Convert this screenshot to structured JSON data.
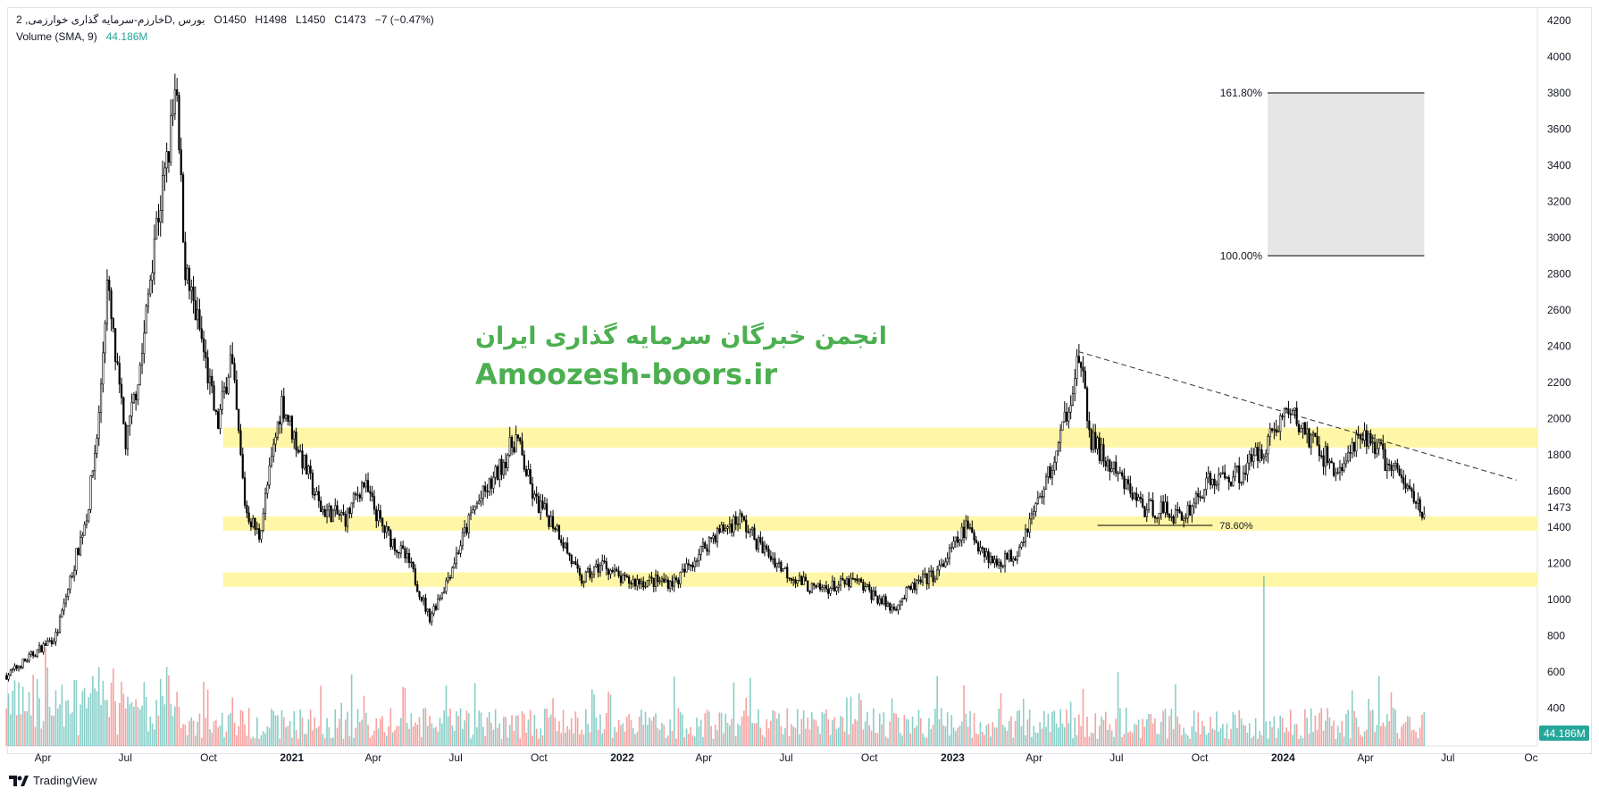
{
  "legend": {
    "symbol_line": "خارزم-سرمایه گذاری خوارزمی, 2D, بورس",
    "open": "O1450",
    "high": "H1498",
    "low": "L1450",
    "close": "C1473",
    "change": "−7 (−0.47%)",
    "volume_label": "Volume (SMA, 9)",
    "volume_value": "44.186M"
  },
  "watermark": {
    "line1": "انجمن خبرگان سرمایه گذاری ایران",
    "line2": "Amoozesh-boors.ir",
    "color": "#4caf50"
  },
  "branding": "TradingView",
  "colors": {
    "up_volume": "#26a69a",
    "down_volume": "#ef5350",
    "zone": "#fff59d",
    "fib_box": "#e6e6e6"
  },
  "chart_data": {
    "type": "candlestick",
    "price_axis": {
      "ticks": [
        400,
        600,
        800,
        1000,
        1200,
        1400,
        1600,
        1800,
        2000,
        2200,
        2400,
        2600,
        2800,
        3000,
        3200,
        3400,
        3600,
        3800,
        4000,
        4200
      ],
      "last_price": "1473",
      "volume_badge": "44.186M"
    },
    "time_axis": {
      "ticks": [
        {
          "label": "Apr",
          "date": "2020-04-01"
        },
        {
          "label": "Jul",
          "date": "2020-07-01"
        },
        {
          "label": "Oct",
          "date": "2020-10-01"
        },
        {
          "label": "2021",
          "date": "2021-01-01"
        },
        {
          "label": "Apr",
          "date": "2021-04-01"
        },
        {
          "label": "Jul",
          "date": "2021-07-01"
        },
        {
          "label": "Oct",
          "date": "2021-10-01"
        },
        {
          "label": "2022",
          "date": "2022-01-01"
        },
        {
          "label": "Apr",
          "date": "2022-04-01"
        },
        {
          "label": "Jul",
          "date": "2022-07-01"
        },
        {
          "label": "Oct",
          "date": "2022-10-01"
        },
        {
          "label": "2023",
          "date": "2023-01-01"
        },
        {
          "label": "Apr",
          "date": "2023-04-01"
        },
        {
          "label": "Jul",
          "date": "2023-07-01"
        },
        {
          "label": "Oct",
          "date": "2023-10-01"
        },
        {
          "label": "2024",
          "date": "2024-01-01"
        },
        {
          "label": "Apr",
          "date": "2024-04-01"
        },
        {
          "label": "Jul",
          "date": "2024-07-01"
        },
        {
          "label": "Oc",
          "date": "2024-10-01"
        }
      ]
    },
    "approx_price_path": [
      [
        "2020-02-20",
        580
      ],
      [
        "2020-04-15",
        800
      ],
      [
        "2020-05-20",
        1500
      ],
      [
        "2020-06-01",
        2000
      ],
      [
        "2020-06-10",
        2750
      ],
      [
        "2020-06-20",
        2300
      ],
      [
        "2020-07-01",
        1850
      ],
      [
        "2020-07-20",
        2400
      ],
      [
        "2020-08-01",
        3000
      ],
      [
        "2020-08-15",
        3400
      ],
      [
        "2020-08-25",
        3800
      ],
      [
        "2020-09-05",
        2800
      ],
      [
        "2020-09-20",
        2500
      ],
      [
        "2020-10-10",
        1950
      ],
      [
        "2020-10-25",
        2350
      ],
      [
        "2020-11-10",
        1500
      ],
      [
        "2020-11-25",
        1350
      ],
      [
        "2020-12-20",
        2100
      ],
      [
        "2021-01-10",
        1800
      ],
      [
        "2021-02-01",
        1500
      ],
      [
        "2021-03-01",
        1450
      ],
      [
        "2021-03-20",
        1650
      ],
      [
        "2021-04-10",
        1400
      ],
      [
        "2021-05-10",
        1200
      ],
      [
        "2021-06-01",
        900
      ],
      [
        "2021-06-20",
        1100
      ],
      [
        "2021-07-20",
        1500
      ],
      [
        "2021-08-10",
        1650
      ],
      [
        "2021-09-05",
        1900
      ],
      [
        "2021-09-25",
        1550
      ],
      [
        "2021-10-20",
        1400
      ],
      [
        "2021-11-15",
        1100
      ],
      [
        "2021-12-10",
        1200
      ],
      [
        "2022-01-01",
        1100
      ],
      [
        "2022-03-01",
        1100
      ],
      [
        "2022-04-10",
        1350
      ],
      [
        "2022-05-10",
        1450
      ],
      [
        "2022-06-01",
        1300
      ],
      [
        "2022-07-01",
        1150
      ],
      [
        "2022-08-01",
        1050
      ],
      [
        "2022-09-15",
        1100
      ],
      [
        "2022-10-25",
        950
      ],
      [
        "2022-11-20",
        1080
      ],
      [
        "2022-12-15",
        1150
      ],
      [
        "2023-01-15",
        1400
      ],
      [
        "2023-02-15",
        1200
      ],
      [
        "2023-03-10",
        1250
      ],
      [
        "2023-04-01",
        1500
      ],
      [
        "2023-04-25",
        1800
      ],
      [
        "2023-05-20",
        2350
      ],
      [
        "2023-06-01",
        1900
      ],
      [
        "2023-06-20",
        1750
      ],
      [
        "2023-08-01",
        1500
      ],
      [
        "2023-08-20",
        1500
      ],
      [
        "2023-09-10",
        1450
      ],
      [
        "2023-10-10",
        1650
      ],
      [
        "2023-11-15",
        1700
      ],
      [
        "2023-12-10",
        1850
      ],
      [
        "2024-01-05",
        2050
      ],
      [
        "2024-02-05",
        1850
      ],
      [
        "2024-03-01",
        1700
      ],
      [
        "2024-03-20",
        1850
      ],
      [
        "2024-04-05",
        1900
      ],
      [
        "2024-04-25",
        1750
      ],
      [
        "2024-05-20",
        1600
      ],
      [
        "2024-06-05",
        1473
      ]
    ],
    "zones": [
      {
        "from": 1840,
        "to": 1950
      },
      {
        "from": 1380,
        "to": 1460
      },
      {
        "from": 1070,
        "to": 1150
      }
    ],
    "fib_box": {
      "top_label": "161.80%",
      "top_price": 3800,
      "bottom_label": "100.00%",
      "bottom_price": 2900,
      "start": "2023-12-15",
      "end": "2024-06-05"
    },
    "fib_line": {
      "label": "78.60%",
      "price": 1410,
      "start": "2023-06-10",
      "end": "2023-10-15"
    },
    "trendline": {
      "start": [
        "2023-05-20",
        2370
      ],
      "end": [
        "2024-09-15",
        1660
      ],
      "style": "dashed"
    }
  }
}
